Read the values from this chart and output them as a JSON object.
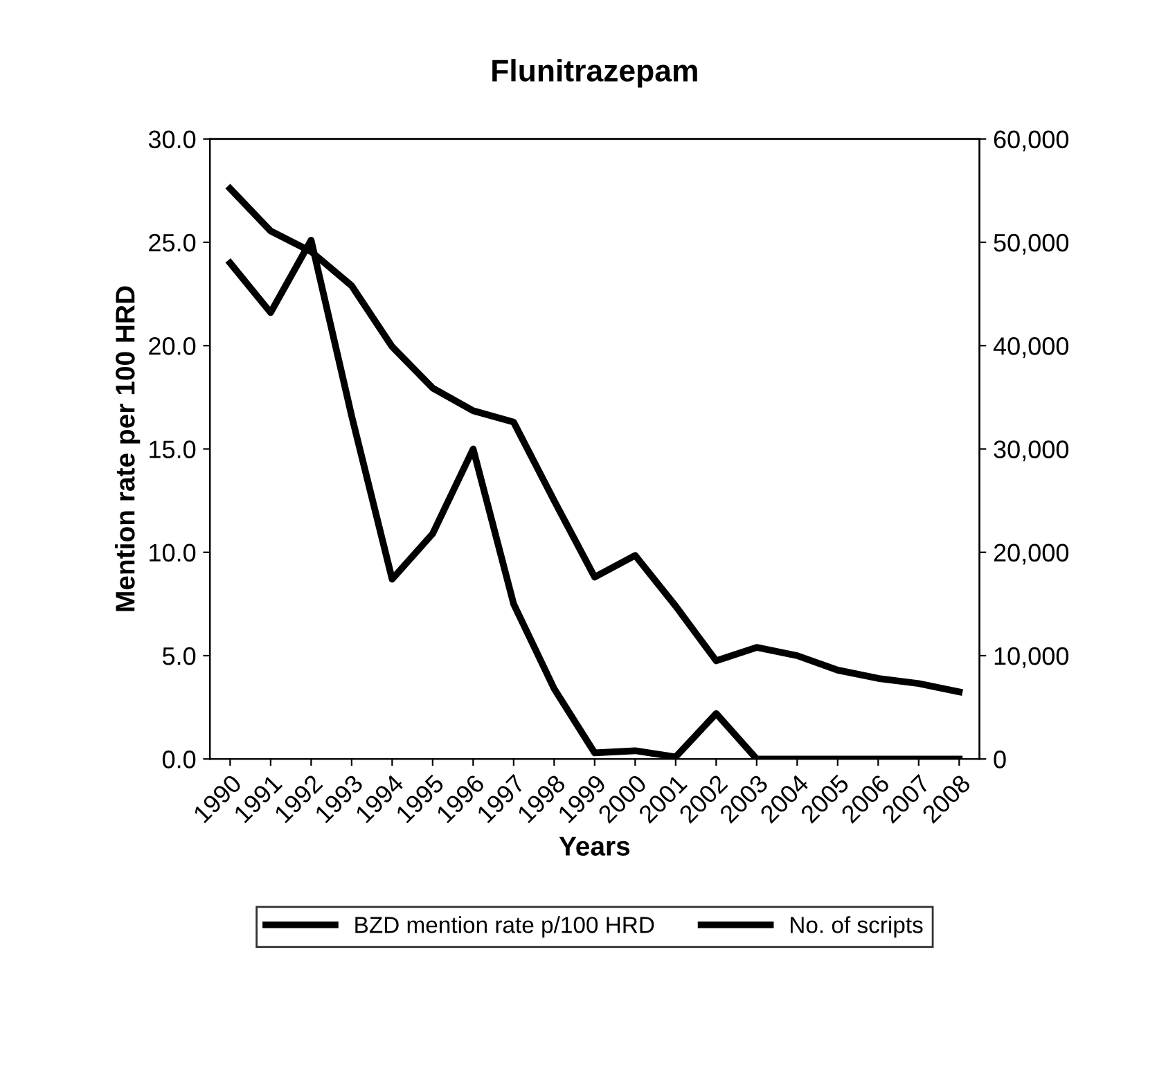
{
  "chart_data": {
    "type": "line",
    "title": "Flunitrazepam",
    "xlabel": "Years",
    "ylabel": "Mention rate per 100 HRD",
    "categories": [
      "1990",
      "1991",
      "1992",
      "1993",
      "1994",
      "1995",
      "1996",
      "1997",
      "1998",
      "1999",
      "2000",
      "2001",
      "2002",
      "2003",
      "2004",
      "2005",
      "2006",
      "2007",
      "2008"
    ],
    "series": [
      {
        "name": "BZD mention rate p/100 HRD",
        "color": "#000000",
        "values": [
          24.0,
          21.6,
          25.1,
          16.6,
          8.7,
          10.9,
          15.0,
          7.5,
          3.4,
          0.3,
          0.4,
          0.1,
          2.2,
          0,
          0,
          0,
          0,
          0,
          0
        ]
      },
      {
        "name": "No. of scripts",
        "color": "#000000",
        "axis": "y2",
        "values": [
          55200,
          51100,
          49100,
          45800,
          39900,
          35900,
          33700,
          32600,
          25000,
          17600,
          19700,
          14800,
          9500,
          10800,
          10000,
          8600,
          7800,
          7300,
          6500
        ]
      }
    ],
    "ylim": [
      0,
      30
    ],
    "yticks": [
      {
        "value": 0,
        "label": "0.0"
      },
      {
        "value": 5,
        "label": "5.0"
      },
      {
        "value": 10,
        "label": "10.0"
      },
      {
        "value": 15,
        "label": "15.0"
      },
      {
        "value": 20,
        "label": "20.0"
      },
      {
        "value": 25,
        "label": "25.0"
      },
      {
        "value": 30,
        "label": "30.0"
      }
    ],
    "y2lim": [
      0,
      60000
    ],
    "y2ticks": [
      {
        "value": 0,
        "label": "0"
      },
      {
        "value": 10000,
        "label": "10,000"
      },
      {
        "value": 20000,
        "label": "20,000"
      },
      {
        "value": 30000,
        "label": "30,000"
      },
      {
        "value": 40000,
        "label": "40,000"
      },
      {
        "value": 50000,
        "label": "50,000"
      },
      {
        "value": 60000,
        "label": "60,000"
      }
    ],
    "legend": "bottom",
    "grid": false,
    "marker": "none",
    "line_style": "solid"
  }
}
